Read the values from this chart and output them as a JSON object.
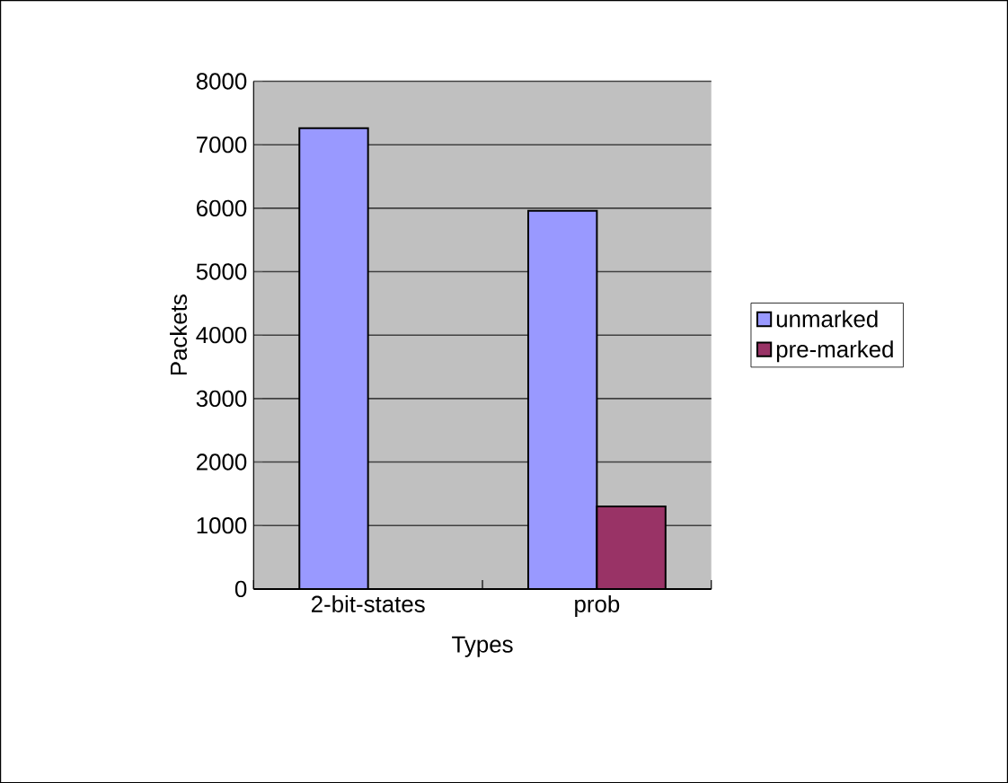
{
  "chart_data": {
    "type": "bar",
    "xlabel": "Types",
    "ylabel": "Packets",
    "categories": [
      "2-bit-states",
      "prob"
    ],
    "series": [
      {
        "name": "unmarked",
        "color": "#9999ff",
        "values": [
          7260,
          5960
        ]
      },
      {
        "name": "pre-marked",
        "color": "#993366",
        "values": [
          null,
          1300
        ]
      }
    ],
    "ylim": [
      0,
      8000
    ],
    "yticks": [
      0,
      1000,
      2000,
      3000,
      4000,
      5000,
      6000,
      7000,
      8000
    ],
    "grid": "y",
    "legend": "right"
  }
}
